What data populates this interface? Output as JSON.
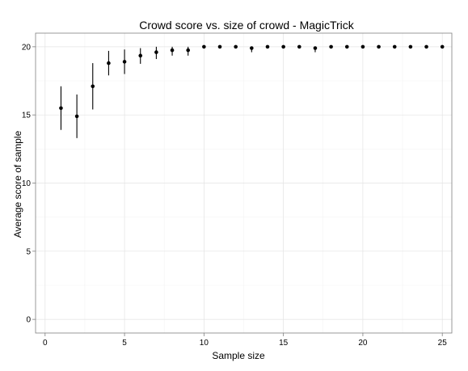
{
  "chart_data": {
    "type": "scatter",
    "title": "Crowd score vs. size of crowd -  MagicTrick",
    "xlabel": "Sample size",
    "ylabel": "Average score of sample",
    "xlim": [
      -0.6,
      25.6
    ],
    "ylim": [
      -1.0,
      21.0
    ],
    "x_ticks": [
      0,
      5,
      10,
      15,
      20,
      25
    ],
    "y_ticks": [
      0,
      5,
      10,
      15,
      20
    ],
    "grid": true,
    "legend": "none",
    "series": [
      {
        "x": [
          1,
          2,
          3,
          4,
          5,
          6,
          7,
          8,
          9,
          10,
          11,
          12,
          13,
          14,
          15,
          16,
          17,
          18,
          19,
          20,
          21,
          22,
          23,
          24,
          25
        ],
        "y": [
          15.5,
          14.9,
          17.1,
          18.8,
          18.9,
          19.35,
          19.6,
          19.75,
          19.75,
          20.0,
          20.0,
          20.0,
          19.9,
          20.0,
          20.0,
          20.0,
          19.9,
          20.0,
          20.0,
          20.0,
          20.0,
          20.0,
          20.0,
          20.0,
          20.0
        ],
        "ymin": [
          13.9,
          13.3,
          15.4,
          17.9,
          18.0,
          18.75,
          19.1,
          19.35,
          19.35,
          20.0,
          20.0,
          20.0,
          19.6,
          20.0,
          20.0,
          20.0,
          19.6,
          20.0,
          20.0,
          20.0,
          20.0,
          20.0,
          20.0,
          20.0,
          20.0
        ],
        "ymax": [
          17.1,
          16.5,
          18.8,
          19.7,
          19.8,
          19.9,
          20.0,
          20.0,
          20.0,
          20.0,
          20.0,
          20.0,
          20.0,
          20.0,
          20.0,
          20.0,
          20.0,
          20.0,
          20.0,
          20.0,
          20.0,
          20.0,
          20.0,
          20.0,
          20.0
        ]
      }
    ],
    "colors": {
      "points": "#000000",
      "grid": "#e3e3e3",
      "border": "#7f7f7f"
    }
  }
}
